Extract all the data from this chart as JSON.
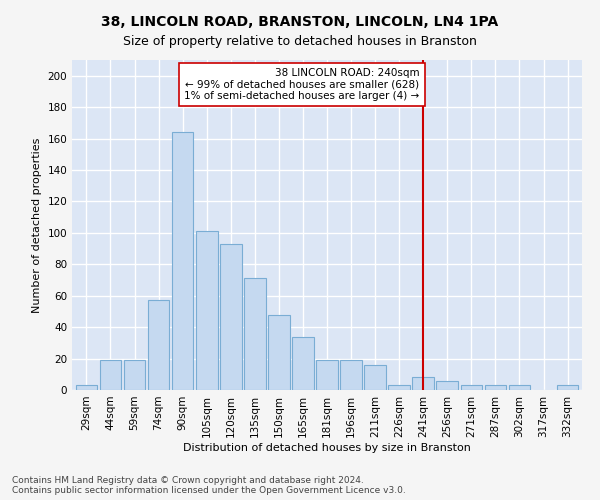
{
  "title": "38, LINCOLN ROAD, BRANSTON, LINCOLN, LN4 1PA",
  "subtitle": "Size of property relative to detached houses in Branston",
  "xlabel": "Distribution of detached houses by size in Branston",
  "ylabel": "Number of detached properties",
  "bar_color": "#c5d9f0",
  "bar_edge_color": "#7aadd4",
  "background_color": "#dce6f5",
  "fig_background_color": "#f5f5f5",
  "grid_color": "#ffffff",
  "categories": [
    "29sqm",
    "44sqm",
    "59sqm",
    "74sqm",
    "90sqm",
    "105sqm",
    "120sqm",
    "135sqm",
    "150sqm",
    "165sqm",
    "181sqm",
    "196sqm",
    "211sqm",
    "226sqm",
    "241sqm",
    "256sqm",
    "271sqm",
    "287sqm",
    "302sqm",
    "317sqm",
    "332sqm"
  ],
  "values": [
    3,
    19,
    19,
    57,
    164,
    101,
    93,
    71,
    48,
    34,
    19,
    19,
    16,
    3,
    8,
    6,
    3,
    3,
    3,
    0,
    3
  ],
  "vline_index": 14,
  "vline_color": "#cc0000",
  "annotation_line1": "38 LINCOLN ROAD: 240sqm",
  "annotation_line2": "← 99% of detached houses are smaller (628)",
  "annotation_line3": "1% of semi-detached houses are larger (4) →",
  "annotation_box_color": "#ffffff",
  "annotation_box_edge_color": "#cc0000",
  "ylim": [
    0,
    210
  ],
  "yticks": [
    0,
    20,
    40,
    60,
    80,
    100,
    120,
    140,
    160,
    180,
    200
  ],
  "footnote": "Contains HM Land Registry data © Crown copyright and database right 2024.\nContains public sector information licensed under the Open Government Licence v3.0.",
  "title_fontsize": 10,
  "subtitle_fontsize": 9,
  "axis_label_fontsize": 8,
  "tick_fontsize": 7.5,
  "annotation_fontsize": 7.5,
  "footnote_fontsize": 6.5,
  "ylabel_fontsize": 8
}
